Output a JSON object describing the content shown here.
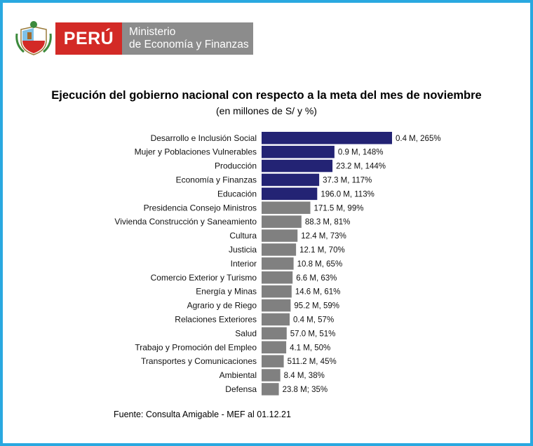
{
  "logo": {
    "country": "PERÚ",
    "ministry_line1": "Ministerio",
    "ministry_line2": "de Economía y Finanzas"
  },
  "colors": {
    "border": "#29a8e0",
    "highlight_bar": "#232374",
    "regular_bar": "#808080",
    "logo_red": "#d32a26",
    "logo_gray": "#8c8c8c"
  },
  "source": "Fuente: Consulta Amigable - MEF al 01.12.21",
  "chart_data": {
    "type": "bar",
    "orientation": "horizontal",
    "title": "Ejecución del gobierno nacional con respecto a la meta del mes de noviembre",
    "subtitle": "(en millones de S/ y %)",
    "categories": [
      "Desarrollo e Inclusión Social",
      "Mujer y Poblaciones Vulnerables",
      "Producción",
      "Economía y Finanzas",
      "Educación",
      "Presidencia Consejo Ministros",
      "Vivienda Construcción y Saneamiento",
      "Cultura",
      "Justicia",
      "Interior",
      "Comercio Exterior y Turismo",
      "Energía y Minas",
      "Agrario y de Riego",
      "Relaciones Exteriores",
      "Salud",
      "Trabajo y Promoción del Empleo",
      "Transportes y Comunicaciones",
      "Ambiental",
      "Defensa"
    ],
    "values": [
      265,
      148,
      144,
      117,
      113,
      99,
      81,
      73,
      70,
      65,
      63,
      61,
      59,
      57,
      51,
      50,
      45,
      38,
      35
    ],
    "highlighted": [
      true,
      true,
      true,
      true,
      true,
      false,
      false,
      false,
      false,
      false,
      false,
      false,
      false,
      false,
      false,
      false,
      false,
      false,
      false
    ],
    "labels": [
      "0.4 M, 265%",
      "0.9 M, 148%",
      "23.2 M, 144%",
      "37.3 M, 117%",
      "196.0 M, 113%",
      "171.5 M, 99%",
      "88.3 M, 81%",
      "12.4 M, 73%",
      "12.1 M, 70%",
      "10.8 M, 65%",
      "6.6 M, 63%",
      "14.6 M, 61%",
      "95.2 M, 59%",
      "0.4 M, 57%",
      "57.0 M, 51%",
      "4.1 M, 50%",
      "511.2 M, 45%",
      "8.4 M, 38%",
      "23.8 M; 35%"
    ],
    "xlim": [
      0,
      265
    ],
    "grid": false,
    "legend": "none"
  }
}
